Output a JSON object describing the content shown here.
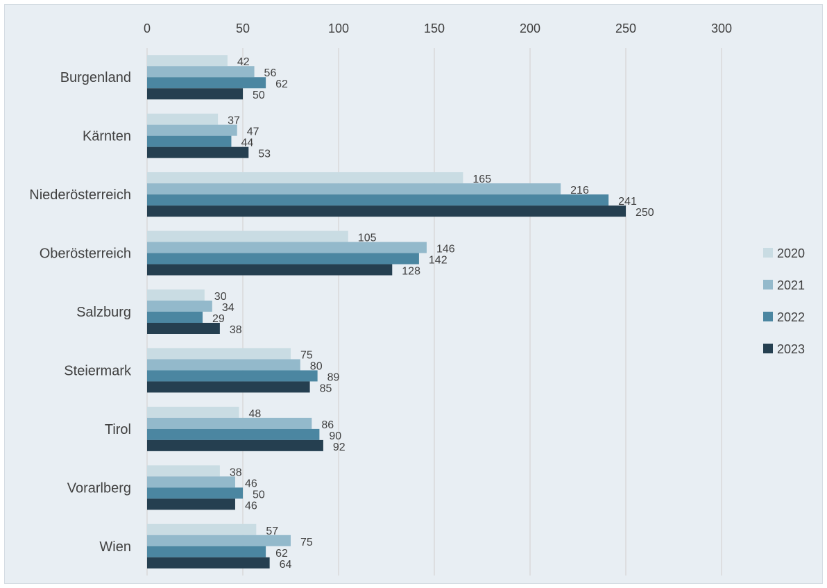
{
  "chart_data": {
    "type": "bar",
    "orientation": "horizontal",
    "categories": [
      "Burgenland",
      "Kärnten",
      "Niederösterreich",
      "Oberösterreich",
      "Salzburg",
      "Steiermark",
      "Tirol",
      "Vorarlberg",
      "Wien"
    ],
    "series": [
      {
        "name": "2020",
        "color": "#c9dce3",
        "values": [
          42,
          37,
          165,
          105,
          30,
          75,
          48,
          38,
          57
        ]
      },
      {
        "name": "2021",
        "color": "#93b9cb",
        "values": [
          56,
          47,
          216,
          146,
          34,
          80,
          86,
          46,
          75
        ]
      },
      {
        "name": "2022",
        "color": "#4b86a1",
        "values": [
          62,
          44,
          241,
          142,
          29,
          89,
          90,
          50,
          62
        ]
      },
      {
        "name": "2023",
        "color": "#253f50",
        "values": [
          50,
          53,
          250,
          128,
          38,
          85,
          92,
          46,
          64
        ]
      }
    ],
    "x_ticks": [
      "0",
      "50",
      "100",
      "150",
      "200",
      "250",
      "300"
    ],
    "xlim": [
      0,
      300
    ],
    "x_axis_position": "top",
    "grid": true,
    "gridline_color": "#d9d9d9",
    "data_labels": true,
    "legend": "right"
  }
}
